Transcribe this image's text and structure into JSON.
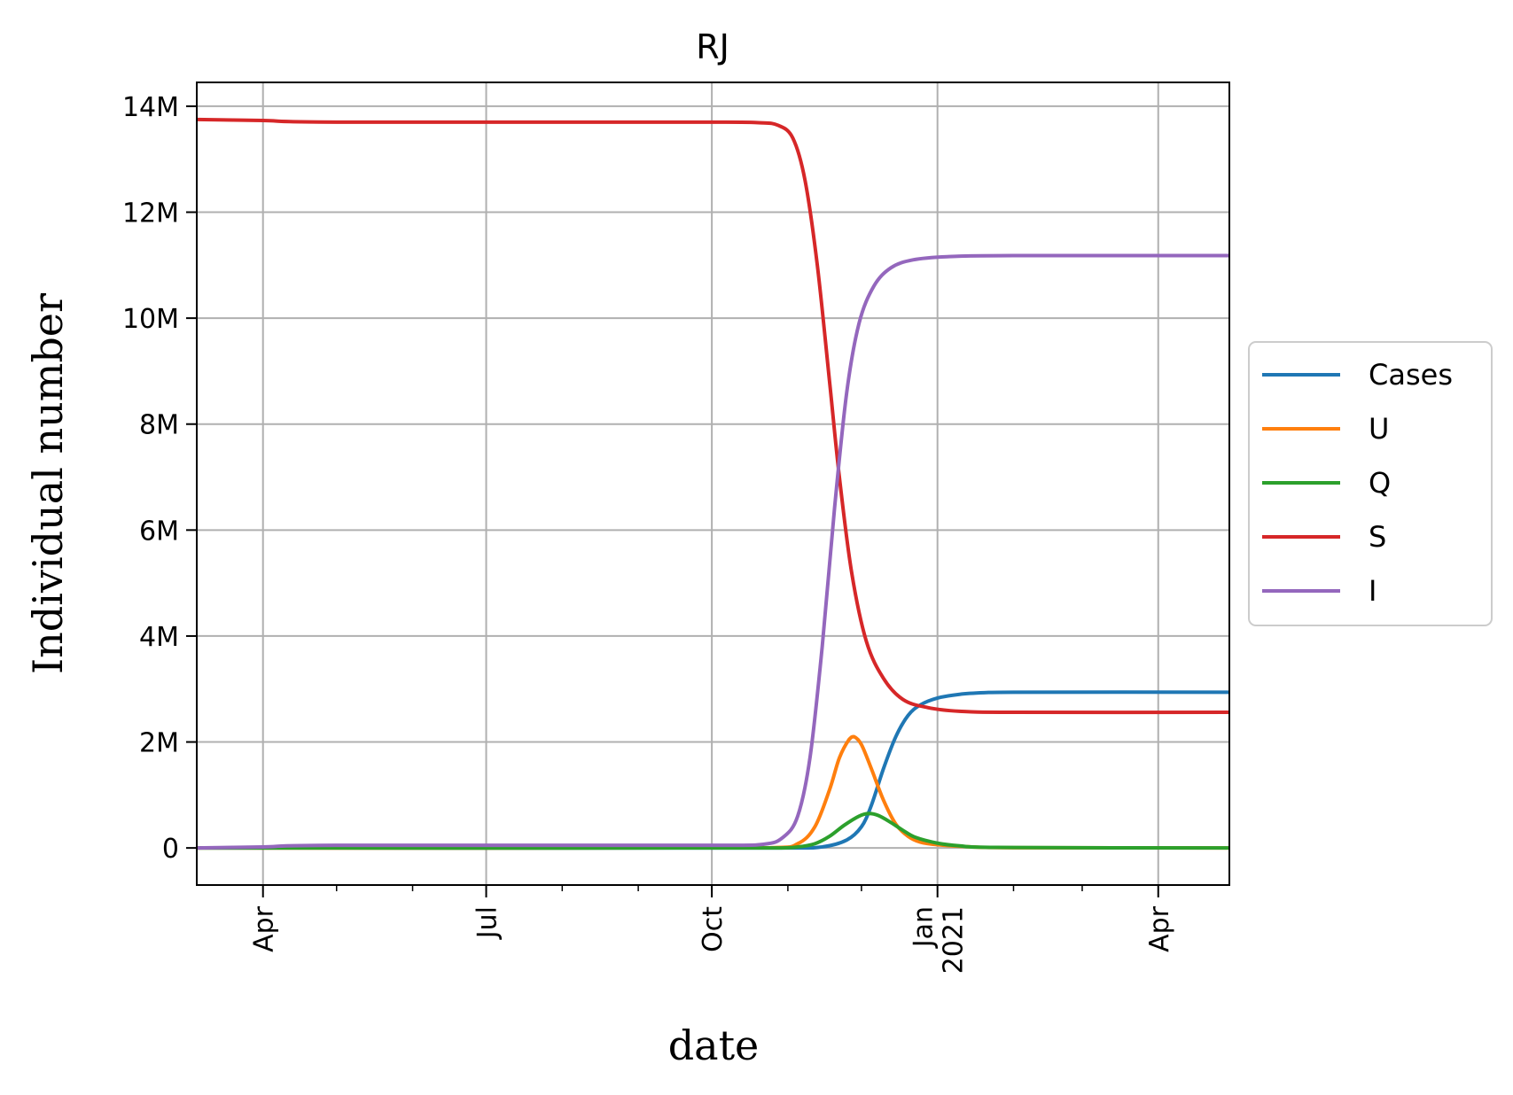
{
  "chart_data": {
    "type": "line",
    "title": "RJ",
    "xlabel": "date",
    "ylabel": "Individual number",
    "x_axis": {
      "type": "date",
      "range": [
        "2020-03-05",
        "2021-04-30"
      ],
      "ticks": [
        {
          "date": "2020-04-01",
          "label": "Apr"
        },
        {
          "date": "2020-07-01",
          "label": "Jul"
        },
        {
          "date": "2020-10-01",
          "label": "Oct"
        },
        {
          "date": "2021-01-01",
          "label": "Jan\n2021"
        },
        {
          "date": "2021-04-01",
          "label": "Apr"
        }
      ]
    },
    "y_axis": {
      "range": [
        -700000,
        14450000
      ],
      "ticks": [
        {
          "value": 0,
          "label": "0"
        },
        {
          "value": 2000000,
          "label": "2M"
        },
        {
          "value": 4000000,
          "label": "4M"
        },
        {
          "value": 6000000,
          "label": "6M"
        },
        {
          "value": 8000000,
          "label": "8M"
        },
        {
          "value": 10000000,
          "label": "10M"
        },
        {
          "value": 12000000,
          "label": "12M"
        },
        {
          "value": 14000000,
          "label": "14M"
        }
      ]
    },
    "grid": true,
    "legend_position": "center-right outside",
    "series": [
      {
        "name": "Cases",
        "color": "#1f77b4",
        "points": [
          [
            "2020-03-05",
            0
          ],
          [
            "2020-11-01",
            0
          ],
          [
            "2020-11-15",
            20000
          ],
          [
            "2020-11-25",
            150000
          ],
          [
            "2020-12-01",
            400000
          ],
          [
            "2020-12-05",
            800000
          ],
          [
            "2020-12-10",
            1500000
          ],
          [
            "2020-12-15",
            2100000
          ],
          [
            "2020-12-20",
            2500000
          ],
          [
            "2020-12-25",
            2700000
          ],
          [
            "2021-01-01",
            2830000
          ],
          [
            "2021-01-10",
            2900000
          ],
          [
            "2021-01-20",
            2930000
          ],
          [
            "2021-02-01",
            2940000
          ],
          [
            "2021-04-30",
            2940000
          ]
        ]
      },
      {
        "name": "U",
        "color": "#ff7f0e",
        "points": [
          [
            "2020-03-05",
            0
          ],
          [
            "2020-10-25",
            5000
          ],
          [
            "2020-11-05",
            80000
          ],
          [
            "2020-11-12",
            400000
          ],
          [
            "2020-11-18",
            1100000
          ],
          [
            "2020-11-22",
            1700000
          ],
          [
            "2020-11-26",
            2050000
          ],
          [
            "2020-11-28",
            2100000
          ],
          [
            "2020-12-01",
            1950000
          ],
          [
            "2020-12-05",
            1500000
          ],
          [
            "2020-12-10",
            900000
          ],
          [
            "2020-12-15",
            450000
          ],
          [
            "2020-12-20",
            220000
          ],
          [
            "2020-12-25",
            110000
          ],
          [
            "2021-01-01",
            60000
          ],
          [
            "2021-01-15",
            20000
          ],
          [
            "2021-02-01",
            5000
          ],
          [
            "2021-04-30",
            0
          ]
        ]
      },
      {
        "name": "Q",
        "color": "#2ca02c",
        "points": [
          [
            "2020-03-05",
            0
          ],
          [
            "2020-10-25",
            0
          ],
          [
            "2020-11-05",
            20000
          ],
          [
            "2020-11-12",
            80000
          ],
          [
            "2020-11-18",
            220000
          ],
          [
            "2020-11-24",
            430000
          ],
          [
            "2020-11-30",
            600000
          ],
          [
            "2020-12-04",
            650000
          ],
          [
            "2020-12-08",
            610000
          ],
          [
            "2020-12-13",
            480000
          ],
          [
            "2020-12-18",
            330000
          ],
          [
            "2020-12-23",
            200000
          ],
          [
            "2021-01-01",
            90000
          ],
          [
            "2021-01-10",
            40000
          ],
          [
            "2021-01-25",
            10000
          ],
          [
            "2021-04-30",
            0
          ]
        ]
      },
      {
        "name": "S",
        "color": "#d62728",
        "points": [
          [
            "2020-03-05",
            13750000
          ],
          [
            "2020-04-01",
            13730000
          ],
          [
            "2020-05-01",
            13700000
          ],
          [
            "2020-10-01",
            13700000
          ],
          [
            "2020-10-20",
            13690000
          ],
          [
            "2020-10-28",
            13640000
          ],
          [
            "2020-11-03",
            13400000
          ],
          [
            "2020-11-08",
            12600000
          ],
          [
            "2020-11-13",
            11000000
          ],
          [
            "2020-11-18",
            8800000
          ],
          [
            "2020-11-22",
            7000000
          ],
          [
            "2020-11-27",
            5200000
          ],
          [
            "2020-12-03",
            3900000
          ],
          [
            "2020-12-10",
            3200000
          ],
          [
            "2020-12-18",
            2800000
          ],
          [
            "2020-12-28",
            2650000
          ],
          [
            "2021-01-10",
            2580000
          ],
          [
            "2021-02-01",
            2560000
          ],
          [
            "2021-04-30",
            2560000
          ]
        ]
      },
      {
        "name": "I",
        "color": "#9467bd",
        "points": [
          [
            "2020-03-05",
            0
          ],
          [
            "2020-04-01",
            20000
          ],
          [
            "2020-05-01",
            50000
          ],
          [
            "2020-10-01",
            50000
          ],
          [
            "2020-10-22",
            70000
          ],
          [
            "2020-10-30",
            200000
          ],
          [
            "2020-11-05",
            600000
          ],
          [
            "2020-11-10",
            1700000
          ],
          [
            "2020-11-15",
            3800000
          ],
          [
            "2020-11-20",
            6400000
          ],
          [
            "2020-11-25",
            8600000
          ],
          [
            "2020-11-30",
            9900000
          ],
          [
            "2020-12-06",
            10600000
          ],
          [
            "2020-12-13",
            10950000
          ],
          [
            "2020-12-22",
            11100000
          ],
          [
            "2021-01-05",
            11160000
          ],
          [
            "2021-02-01",
            11180000
          ],
          [
            "2021-04-30",
            11180000
          ]
        ]
      }
    ]
  }
}
